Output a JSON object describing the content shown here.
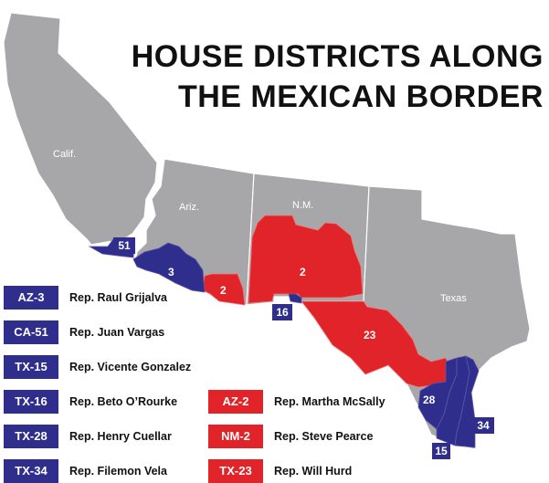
{
  "title": {
    "line1": "HOUSE DISTRICTS ALONG",
    "line2": "THE MEXICAN BORDER"
  },
  "colors": {
    "state": "#a7a7a9",
    "democrat": "#302e8c",
    "republican": "#e0242a"
  },
  "states": {
    "ca": "Calif.",
    "az": "Ariz.",
    "nm": "N.M.",
    "tx": "Texas"
  },
  "districts": {
    "ca51": "51",
    "az3": "3",
    "az2": "2",
    "nm2": "2",
    "tx23": "23",
    "tx16": "16",
    "tx28": "28",
    "tx34": "34",
    "tx15": "15"
  },
  "legend": [
    {
      "code": "AZ-3",
      "name": "Rep. Raul Grijalva",
      "party": "democrat"
    },
    {
      "code": "CA-51",
      "name": "Rep. Juan Vargas",
      "party": "democrat"
    },
    {
      "code": "TX-15",
      "name": "Rep. Vicente Gonzalez",
      "party": "democrat"
    },
    {
      "code": "TX-16",
      "name": "Rep. Beto O’Rourke",
      "party": "democrat"
    },
    {
      "code": "TX-28",
      "name": "Rep. Henry Cuellar",
      "party": "democrat"
    },
    {
      "code": "TX-34",
      "name": "Rep. Filemon Vela",
      "party": "democrat"
    },
    {
      "code": "AZ-2",
      "name": "Rep. Martha McSally",
      "party": "republican"
    },
    {
      "code": "NM-2",
      "name": "Rep. Steve Pearce",
      "party": "republican"
    },
    {
      "code": "TX-23",
      "name": "Rep. Will Hurd",
      "party": "republican"
    }
  ]
}
